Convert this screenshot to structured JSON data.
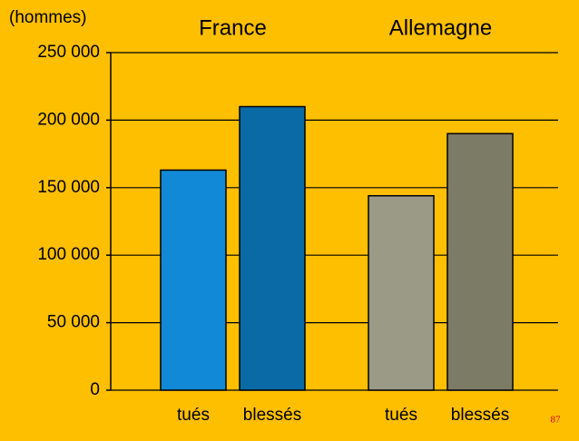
{
  "chart_data": {
    "type": "bar",
    "y_label": "(hommes)",
    "groups": [
      "France",
      "Allemagne"
    ],
    "categories": [
      "tués",
      "blessés",
      "tués",
      "blessés"
    ],
    "values": [
      163000,
      210000,
      144000,
      190000
    ],
    "colors": [
      "#1289d6",
      "#0a6aa6",
      "#9a9a86",
      "#7b7b66"
    ],
    "ylim": [
      0,
      250000
    ],
    "yticks": [
      0,
      {
        "value": 50000,
        "label": "50 000"
      },
      {
        "value": 100000,
        "label": "100 000"
      },
      {
        "value": 150000,
        "label": "150 000"
      },
      {
        "value": 200000,
        "label": "200 000"
      },
      {
        "value": 250000,
        "label": "250 000"
      }
    ],
    "grid": true,
    "page_number": "87"
  }
}
